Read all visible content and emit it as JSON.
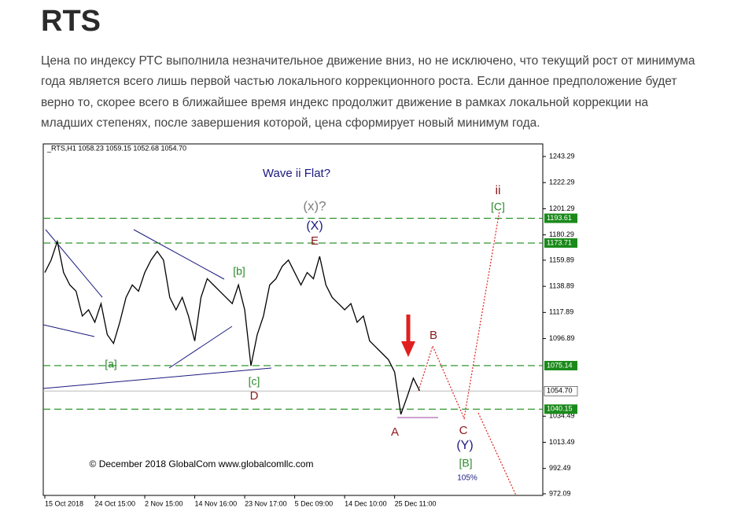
{
  "header": {
    "title": "RTS"
  },
  "paragraph": [
    "Цена по индексу РТС выполнила незначительное движение вниз, но не исключено, что текущий рост от минимума",
    "года является всего лишь первой частью локального коррекционного роста. Если данное предположение будет",
    "верно то, скорее всего в ближайшее время индекс продолжит движение в рамках локальной коррекции на",
    "младших степенях, после завершения которой, цена сформирует новый минимум года."
  ],
  "chart_data": {
    "type": "line",
    "title": "Wave ii Flat?",
    "subtitle": "_RTS,H1  1058.23 1059.15 1052.68 1054.70",
    "categories": [
      "15 Oct 2018",
      null,
      null,
      null,
      null,
      null,
      null,
      null,
      "24 Oct 15:00",
      null,
      null,
      null,
      null,
      null,
      null,
      null,
      "2 Nov 15:00",
      null,
      null,
      null,
      null,
      null,
      null,
      null,
      "14 Nov 16:00",
      null,
      null,
      null,
      null,
      null,
      null,
      null,
      "23 Nov 17:00",
      null,
      null,
      null,
      null,
      null,
      null,
      null,
      "5 Dec 09:00",
      null,
      null,
      null,
      null,
      null,
      null,
      null,
      "14 Dec 10:00",
      null,
      null,
      null,
      null,
      null,
      null,
      null,
      "25 Dec 11:00",
      null,
      null,
      null,
      null
    ],
    "series": [
      {
        "name": "RTS",
        "color": "#000000",
        "values": [
          1150,
          1160,
          1175,
          1150,
          1140,
          1135,
          1115,
          1120,
          1110,
          1125,
          1100,
          1093,
          1110,
          1130,
          1140,
          1135,
          1150,
          1160,
          1167,
          1160,
          1130,
          1120,
          1130,
          1115,
          1095,
          1130,
          1145,
          1140,
          1135,
          1130,
          1125,
          1140,
          1120,
          1075,
          1100,
          1115,
          1140,
          1145,
          1155,
          1160,
          1150,
          1140,
          1150,
          1145,
          1163,
          1140,
          1130,
          1125,
          1120,
          1125,
          1110,
          1115,
          1095,
          1090,
          1085,
          1080,
          1070,
          1036,
          1050,
          1065,
          1055
        ]
      }
    ],
    "ylim": [
      970.8,
      1253.4
    ],
    "yticks": [
      1243.29,
      1222.29,
      1201.29,
      1180.29,
      1159.89,
      1138.89,
      1117.89,
      1096.89,
      1034.49,
      1013.49,
      992.49,
      972.09
    ],
    "levels": [
      {
        "value": 1193.61,
        "color": "#1a8a1a"
      },
      {
        "value": 1173.71,
        "color": "#1a8a1a"
      },
      {
        "value": 1075.14,
        "color": "#1a8a1a"
      },
      {
        "value": 1040.15,
        "color": "#1a8a1a"
      }
    ],
    "current_price": {
      "value": 1054.7,
      "label": "1054.70"
    },
    "annotations": [
      {
        "text": "(x)?",
        "color": "#808080"
      },
      {
        "text": "(X)",
        "color": "#1a1a80"
      },
      {
        "text": "E",
        "color": "#8b1a1a"
      },
      {
        "text": "[b]",
        "color": "#2a8a2a"
      },
      {
        "text": "[a]",
        "color": "#2a8a2a"
      },
      {
        "text": "[c]",
        "color": "#2a8a2a"
      },
      {
        "text": "D",
        "color": "#8b1a1a"
      },
      {
        "text": "A",
        "color": "#8b1a1a"
      },
      {
        "text": "B",
        "color": "#8b1a1a"
      },
      {
        "text": "C",
        "color": "#8b1a1a"
      },
      {
        "text": "(Y)",
        "color": "#1a1a80"
      },
      {
        "text": "[B]",
        "color": "#2a8a2a"
      },
      {
        "text": "105%",
        "color": "#1a1a80"
      },
      {
        "text": "ii",
        "color": "#8b1a1a"
      },
      {
        "text": "[C]",
        "color": "#2a8a2a"
      },
      {
        "text": "© December 2018 GlobalCom www.globalcomllc.com",
        "color": "#000000"
      }
    ]
  }
}
